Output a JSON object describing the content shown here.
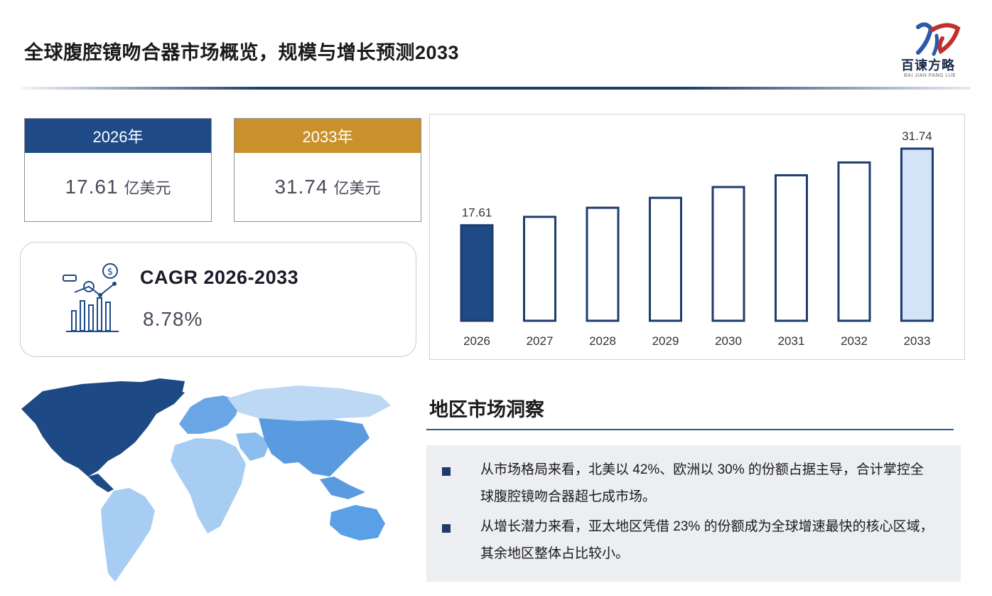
{
  "header": {
    "title": "全球腹腔镜吻合器市场概览，规模与增长预测2033",
    "logo_text": "百谏方略",
    "logo_sub": "BAI JIAN FANG LUE"
  },
  "cards": [
    {
      "year": "2026年",
      "value": "17.61",
      "unit": "亿美元",
      "color": "#1e4a86"
    },
    {
      "year": "2033年",
      "value": "31.74",
      "unit": "亿美元",
      "color": "#c9912b"
    }
  ],
  "cagr": {
    "label": "CAGR 2026-2033",
    "value": "8.78%"
  },
  "chart_data": {
    "type": "bar",
    "categories": [
      "2026",
      "2027",
      "2028",
      "2029",
      "2030",
      "2031",
      "2032",
      "2033"
    ],
    "values": [
      17.61,
      19.16,
      20.84,
      22.67,
      24.66,
      26.83,
      29.19,
      31.74
    ],
    "data_labels": [
      "17.61",
      "",
      "",
      "",
      "",
      "",
      "",
      "31.74"
    ],
    "title": "",
    "xlabel": "",
    "ylabel": "",
    "ylim": [
      0,
      31.74
    ],
    "grid": false,
    "colors": {
      "first": "#1e4a86",
      "last_fill": "#d3e3f8",
      "outline": "#1e3d6e",
      "default_fill": "#ffffff"
    }
  },
  "region": {
    "title": "地区市场洞察",
    "bullets": [
      "从市场格局来看，北美以 42%、欧洲以 30% 的份额占据主导，合计掌控全球腹腔镜吻合器超七成市场。",
      "从增长潜力来看，亚太地区凭借 23% 的份额成为全球增速最快的核心区域，其余地区整体占比较小。"
    ]
  },
  "map_colors": {
    "north_america": "#1d4a84",
    "europe": "#6aa6e6",
    "asia": "#5a9be0",
    "oceania": "#5aa0e6",
    "south_america": "#a8cdf2",
    "africa": "#a8cdf2",
    "russia": "#bcd8f4"
  }
}
